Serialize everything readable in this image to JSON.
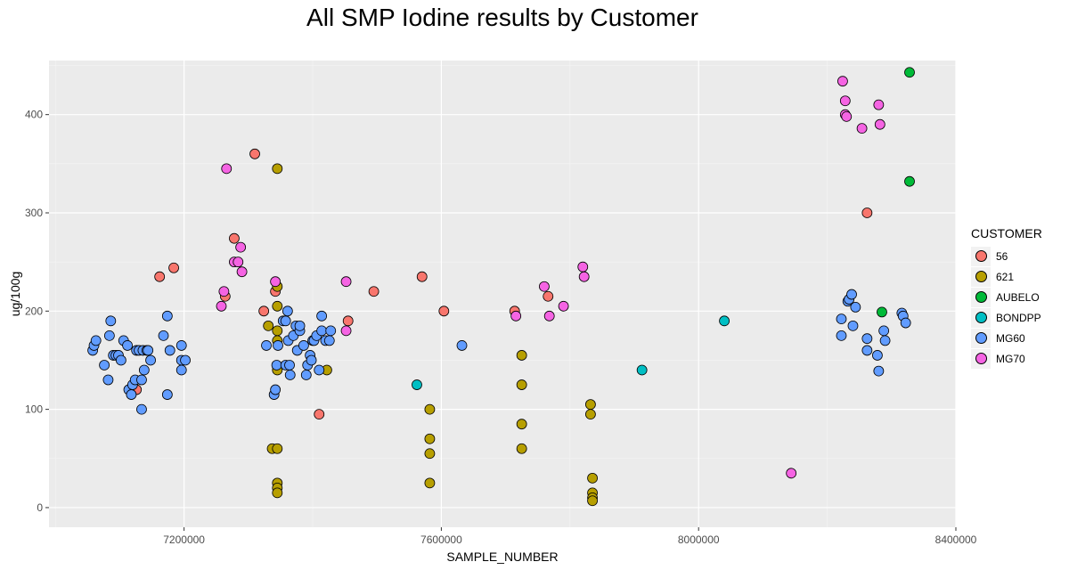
{
  "chart_data": {
    "type": "scatter",
    "title": "All SMP Iodine results by Customer",
    "xlabel": "SAMPLE_NUMBER",
    "ylabel": "ug/100g",
    "xlim": [
      6990000,
      8400000
    ],
    "ylim": [
      -20,
      455
    ],
    "xticks": [
      7200000,
      7600000,
      8000000,
      8400000
    ],
    "xtick_labels": [
      "7200000",
      "7600000",
      "8000000",
      "8400000"
    ],
    "yticks": [
      0,
      100,
      200,
      300,
      400
    ],
    "ytick_labels": [
      "0",
      "100",
      "200",
      "300",
      "400"
    ],
    "grid": true,
    "legend_title": "CUSTOMER",
    "legend_position": "right",
    "series": [
      {
        "name": "56",
        "color": "#F8766D",
        "points": [
          [
            7126000,
            120
          ],
          [
            7162000,
            235
          ],
          [
            7184000,
            244
          ],
          [
            7264000,
            215
          ],
          [
            7278000,
            274
          ],
          [
            7310000,
            360
          ],
          [
            7324000,
            200
          ],
          [
            7342000,
            220
          ],
          [
            7410000,
            95
          ],
          [
            7455000,
            190
          ],
          [
            7495000,
            220
          ],
          [
            7570000,
            235
          ],
          [
            7604000,
            200
          ],
          [
            7714000,
            200
          ],
          [
            7766000,
            215
          ],
          [
            8262000,
            300
          ]
        ]
      },
      {
        "name": "621",
        "color": "#B79F00",
        "points": [
          [
            7331000,
            185
          ],
          [
            7337000,
            60
          ],
          [
            7345000,
            60
          ],
          [
            7345000,
            225
          ],
          [
            7345000,
            205
          ],
          [
            7345000,
            180
          ],
          [
            7345000,
            170
          ],
          [
            7345000,
            140
          ],
          [
            7345000,
            345
          ],
          [
            7345000,
            25
          ],
          [
            7345000,
            20
          ],
          [
            7345000,
            15
          ],
          [
            7422000,
            140
          ],
          [
            7582000,
            100
          ],
          [
            7582000,
            70
          ],
          [
            7582000,
            55
          ],
          [
            7582000,
            25
          ],
          [
            7725000,
            155
          ],
          [
            7725000,
            125
          ],
          [
            7725000,
            85
          ],
          [
            7725000,
            60
          ],
          [
            7832000,
            105
          ],
          [
            7832000,
            95
          ],
          [
            7835000,
            30
          ],
          [
            7835000,
            15
          ],
          [
            7835000,
            10
          ],
          [
            7835000,
            7
          ]
        ]
      },
      {
        "name": "AUBELO",
        "color": "#00BA38",
        "points": [
          [
            8328000,
            443
          ],
          [
            8328000,
            332
          ],
          [
            8285000,
            199
          ]
        ]
      },
      {
        "name": "BONDPP",
        "color": "#00BFC4",
        "points": [
          [
            7562000,
            125
          ],
          [
            7912000,
            140
          ],
          [
            8040000,
            190
          ]
        ]
      },
      {
        "name": "MG60",
        "color": "#619CFF",
        "points": [
          [
            7058000,
            160
          ],
          [
            7060000,
            165
          ],
          [
            7063000,
            170
          ],
          [
            7076000,
            145
          ],
          [
            7082000,
            130
          ],
          [
            7084000,
            175
          ],
          [
            7086000,
            190
          ],
          [
            7090000,
            155
          ],
          [
            7094000,
            155
          ],
          [
            7098000,
            155
          ],
          [
            7102000,
            150
          ],
          [
            7106000,
            170
          ],
          [
            7112000,
            165
          ],
          [
            7114000,
            120
          ],
          [
            7118000,
            115
          ],
          [
            7120000,
            125
          ],
          [
            7124000,
            130
          ],
          [
            7126000,
            160
          ],
          [
            7130000,
            160
          ],
          [
            7134000,
            100
          ],
          [
            7134000,
            130
          ],
          [
            7136000,
            160
          ],
          [
            7138000,
            140
          ],
          [
            7142000,
            160
          ],
          [
            7144000,
            160
          ],
          [
            7148000,
            150
          ],
          [
            7168000,
            175
          ],
          [
            7174000,
            195
          ],
          [
            7174000,
            115
          ],
          [
            7178000,
            160
          ],
          [
            7196000,
            165
          ],
          [
            7196000,
            150
          ],
          [
            7196000,
            140
          ],
          [
            7202000,
            150
          ],
          [
            7328000,
            165
          ],
          [
            7340000,
            115
          ],
          [
            7342000,
            120
          ],
          [
            7344000,
            145
          ],
          [
            7346000,
            165
          ],
          [
            7354000,
            190
          ],
          [
            7358000,
            190
          ],
          [
            7358000,
            145
          ],
          [
            7361000,
            200
          ],
          [
            7362000,
            170
          ],
          [
            7364000,
            145
          ],
          [
            7365000,
            135
          ],
          [
            7370000,
            175
          ],
          [
            7374000,
            185
          ],
          [
            7376000,
            160
          ],
          [
            7380000,
            180
          ],
          [
            7380000,
            185
          ],
          [
            7386000,
            165
          ],
          [
            7390000,
            135
          ],
          [
            7392000,
            145
          ],
          [
            7396000,
            155
          ],
          [
            7398000,
            150
          ],
          [
            7400000,
            170
          ],
          [
            7402000,
            170
          ],
          [
            7406000,
            175
          ],
          [
            7410000,
            140
          ],
          [
            7414000,
            180
          ],
          [
            7414000,
            195
          ],
          [
            7420000,
            170
          ],
          [
            7426000,
            170
          ],
          [
            7428000,
            180
          ],
          [
            7632000,
            165
          ],
          [
            8222000,
            175
          ],
          [
            8222000,
            192
          ],
          [
            8232000,
            210
          ],
          [
            8234000,
            212
          ],
          [
            8238000,
            217
          ],
          [
            8240000,
            185
          ],
          [
            8244000,
            204
          ],
          [
            8262000,
            160
          ],
          [
            8262000,
            172
          ],
          [
            8278000,
            155
          ],
          [
            8280000,
            139
          ],
          [
            8288000,
            180
          ],
          [
            8290000,
            170
          ],
          [
            8316000,
            198
          ],
          [
            8318000,
            195
          ],
          [
            8322000,
            188
          ]
        ]
      },
      {
        "name": "MG70",
        "color": "#F564E3",
        "points": [
          [
            7258000,
            205
          ],
          [
            7262000,
            220
          ],
          [
            7266000,
            345
          ],
          [
            7278000,
            250
          ],
          [
            7284000,
            250
          ],
          [
            7288000,
            265
          ],
          [
            7290000,
            240
          ],
          [
            7342000,
            230
          ],
          [
            7452000,
            230
          ],
          [
            7452000,
            180
          ],
          [
            7716000,
            195
          ],
          [
            7760000,
            225
          ],
          [
            7768000,
            195
          ],
          [
            7790000,
            205
          ],
          [
            7820000,
            245
          ],
          [
            7822000,
            235
          ],
          [
            8144000,
            35
          ],
          [
            8224000,
            434
          ],
          [
            8228000,
            414
          ],
          [
            8228000,
            400
          ],
          [
            8230000,
            398
          ],
          [
            8254000,
            386
          ],
          [
            8280000,
            410
          ],
          [
            8282000,
            390
          ]
        ]
      }
    ]
  }
}
